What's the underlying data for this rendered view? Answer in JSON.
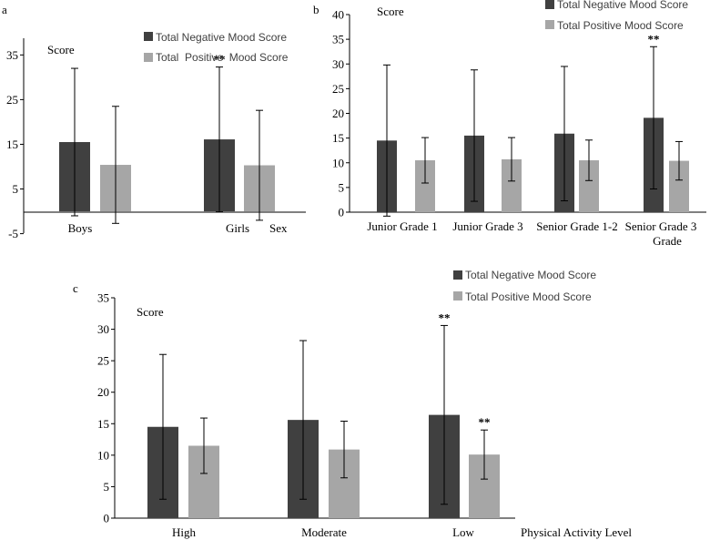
{
  "colors": {
    "negative": "#404040",
    "positive": "#a6a6a6",
    "axis": "#000000",
    "text": "#000000"
  },
  "chart_data": [
    {
      "type": "bar",
      "panel_label": "a",
      "ylabel": "Score",
      "xlabel": "Sex",
      "ylim": [
        -5,
        40
      ],
      "yticks": [
        -5,
        5,
        15,
        25,
        35
      ],
      "ytick_labels": [
        "-5",
        "5",
        "15",
        "25",
        "35"
      ],
      "categories": [
        "Boys",
        "Girls"
      ],
      "series": [
        {
          "name": "Total Negative Mood Score",
          "values": [
            15.5,
            16.1
          ],
          "error": [
            16.5,
            16.2
          ],
          "significance": [
            "",
            "**"
          ]
        },
        {
          "name": "Total  Positive  Mood Score",
          "values": [
            10.4,
            10.3
          ],
          "error": [
            13.1,
            12.3
          ],
          "significance": [
            "",
            ""
          ]
        }
      ],
      "legend": "top-right"
    },
    {
      "type": "bar",
      "panel_label": "b",
      "ylabel": "Score",
      "xlabel": "Grade",
      "ylim": [
        0,
        40
      ],
      "yticks": [
        0,
        5,
        10,
        15,
        20,
        25,
        30,
        35,
        40
      ],
      "ytick_labels": [
        "0",
        "5",
        "10",
        "15",
        "20",
        "25",
        "30",
        "35",
        "40"
      ],
      "categories": [
        "Junior Grade 1",
        "Junior Grade 3",
        "Senior Grade 1-2",
        "Senior Grade 3"
      ],
      "series": [
        {
          "name": "Total Negative Mood Score",
          "values": [
            14.5,
            15.5,
            15.9,
            19.1
          ],
          "error": [
            15.3,
            13.3,
            13.6,
            14.4
          ],
          "significance": [
            "",
            "",
            "",
            "**"
          ]
        },
        {
          "name": "Total Positive Mood Score",
          "values": [
            10.5,
            10.7,
            10.5,
            10.4
          ],
          "error": [
            4.6,
            4.4,
            4.1,
            3.9
          ],
          "significance": [
            "",
            "",
            "",
            ""
          ]
        }
      ],
      "legend": "top-right"
    },
    {
      "type": "bar",
      "panel_label": "c",
      "ylabel": "Score",
      "xlabel": "Physical Activity Level",
      "ylim": [
        0,
        35
      ],
      "yticks": [
        0,
        5,
        10,
        15,
        20,
        25,
        30,
        35
      ],
      "ytick_labels": [
        "0",
        "5",
        "10",
        "15",
        "20",
        "25",
        "30",
        "35"
      ],
      "categories": [
        "High",
        "Moderate",
        "Low"
      ],
      "series": [
        {
          "name": "Total Negative Mood Score",
          "values": [
            14.5,
            15.6,
            16.4
          ],
          "error": [
            11.5,
            12.6,
            14.2
          ],
          "significance": [
            "",
            "",
            "**"
          ]
        },
        {
          "name": "Total Positive Mood Score",
          "values": [
            11.5,
            10.9,
            10.1
          ],
          "error": [
            4.4,
            4.5,
            3.9
          ],
          "significance": [
            "",
            "",
            "**"
          ]
        }
      ],
      "legend": "top-right"
    }
  ]
}
